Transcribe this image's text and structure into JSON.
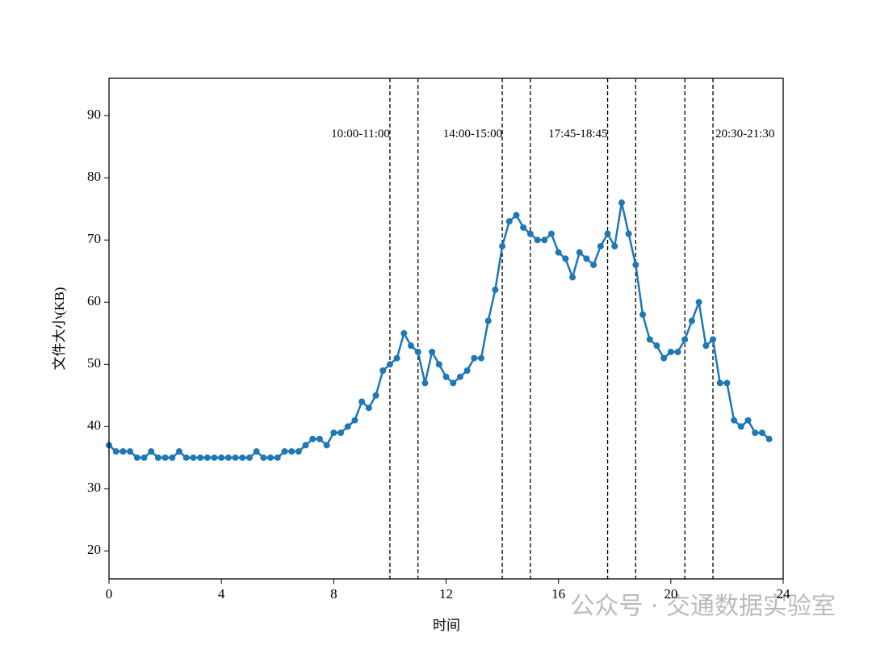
{
  "chart_data": {
    "type": "line",
    "x_label": "时间",
    "y_label": "文件大小(KB)",
    "x": [
      0,
      0.25,
      0.5,
      0.75,
      1,
      1.25,
      1.5,
      1.75,
      2,
      2.25,
      2.5,
      2.75,
      3,
      3.25,
      3.5,
      3.75,
      4,
      4.25,
      4.5,
      4.75,
      5,
      5.25,
      5.5,
      5.75,
      6,
      6.25,
      6.5,
      6.75,
      7,
      7.25,
      7.5,
      7.75,
      8,
      8.25,
      8.5,
      8.75,
      9,
      9.25,
      9.5,
      9.75,
      10,
      10.25,
      10.5,
      10.75,
      11,
      11.25,
      11.5,
      11.75,
      12,
      12.25,
      12.5,
      12.75,
      13,
      13.25,
      13.5,
      13.75,
      14,
      14.25,
      14.5,
      14.75,
      15,
      15.25,
      15.5,
      15.75,
      16,
      16.25,
      16.5,
      16.75,
      17,
      17.25,
      17.5,
      17.75,
      18,
      18.25,
      18.5,
      18.75,
      19,
      19.25,
      19.5,
      19.75,
      20,
      20.25,
      20.5,
      20.75,
      21,
      21.25,
      21.5,
      21.75,
      22,
      22.25,
      22.5,
      22.75,
      23,
      23.25,
      23.5
    ],
    "series": [
      {
        "color": "#1f77b4",
        "values": [
          37,
          36,
          36,
          36,
          35,
          35,
          36,
          35,
          35,
          35,
          36,
          35,
          35,
          35,
          35,
          35,
          35,
          35,
          35,
          35,
          35,
          36,
          35,
          35,
          35,
          36,
          36,
          36,
          37,
          38,
          38,
          37,
          39,
          39,
          40,
          41,
          44,
          43,
          45,
          49,
          50,
          51,
          55,
          53,
          52,
          47,
          52,
          50,
          48,
          47,
          48,
          49,
          51,
          51,
          57,
          62,
          69,
          73,
          74,
          72,
          71,
          70,
          70,
          71,
          68,
          67,
          64,
          68,
          67,
          66,
          69,
          71,
          69,
          76,
          71,
          66,
          58,
          54,
          53,
          51,
          52,
          52,
          54,
          57,
          60,
          53,
          54,
          47,
          47,
          41,
          40,
          41,
          39,
          39,
          38
        ]
      }
    ],
    "xlim": [
      0,
      24
    ],
    "xticks": [
      0,
      4,
      8,
      12,
      16,
      20,
      24
    ],
    "ylim": [
      15.5,
      96
    ],
    "yticks": [
      20,
      30,
      40,
      50,
      60,
      70,
      80,
      90
    ],
    "vlines": [
      10,
      11,
      14,
      15,
      17.75,
      18.75,
      20.5,
      21.5
    ],
    "annotations": [
      {
        "text": "10:00-11:00",
        "x": 10,
        "y": 87,
        "ha": "right"
      },
      {
        "text": "14:00-15:00",
        "x": 14,
        "y": 87,
        "ha": "right"
      },
      {
        "text": "17:45-18:45",
        "x": 17.75,
        "y": 87,
        "ha": "right"
      },
      {
        "text": "20:30-21:30",
        "x": 21.5,
        "y": 87,
        "ha": "left"
      }
    ],
    "watermark": "公众号 · 交通数据实验室"
  }
}
